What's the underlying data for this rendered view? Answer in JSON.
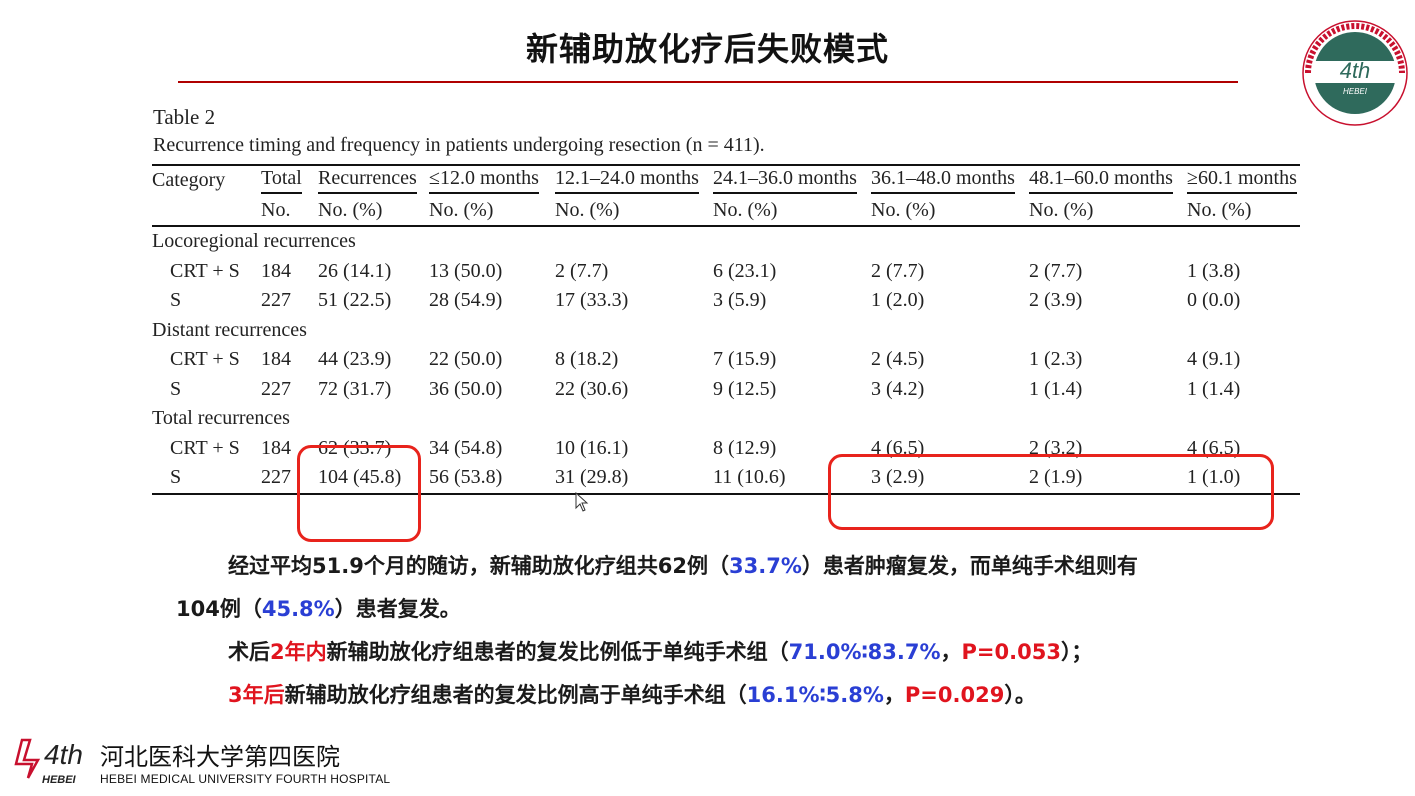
{
  "slide": {
    "title": "新辅助放化疗后失败模式"
  },
  "table": {
    "label": "Table 2",
    "caption": "Recurrence timing and frequency in patients undergoing resection (n = 411).",
    "header_row1": [
      "Category",
      "Total",
      "Recurrences",
      "≤12.0 months",
      "12.1–24.0 months",
      "24.1–36.0 months",
      "36.1–48.0 months",
      "48.1–60.0 months",
      "≥60.1 months"
    ],
    "header_row2": [
      "",
      "No.",
      "No. (%)",
      "No. (%)",
      "No. (%)",
      "No. (%)",
      "No. (%)",
      "No. (%)",
      "No. (%)"
    ],
    "groups": [
      {
        "name": "Locoregional recurrences",
        "rows": [
          [
            "CRT + S",
            "184",
            "26 (14.1)",
            "13 (50.0)",
            "2 (7.7)",
            "6 (23.1)",
            "2 (7.7)",
            "2 (7.7)",
            "1 (3.8)"
          ],
          [
            "S",
            "227",
            "51 (22.5)",
            "28 (54.9)",
            "17 (33.3)",
            "3 (5.9)",
            "1 (2.0)",
            "2 (3.9)",
            "0 (0.0)"
          ]
        ]
      },
      {
        "name": "Distant recurrences",
        "rows": [
          [
            "CRT + S",
            "184",
            "44 (23.9)",
            "22 (50.0)",
            "8 (18.2)",
            "7 (15.9)",
            "2 (4.5)",
            "1 (2.3)",
            "4 (9.1)"
          ],
          [
            "S",
            "227",
            "72 (31.7)",
            "36 (50.0)",
            "22 (30.6)",
            "9 (12.5)",
            "3 (4.2)",
            "1 (1.4)",
            "1 (1.4)"
          ]
        ]
      },
      {
        "name": "Total recurrences",
        "rows": [
          [
            "CRT + S",
            "184",
            "62 (33.7)",
            "34 (54.8)",
            "10 (16.1)",
            "8 (12.9)",
            "4 (6.5)",
            "2 (3.2)",
            "4 (6.5)"
          ],
          [
            "S",
            "227",
            "104 (45.8)",
            "56 (53.8)",
            "31 (29.8)",
            "11 (10.6)",
            "3 (2.9)",
            "2 (1.9)",
            "1 (1.0)"
          ]
        ]
      }
    ]
  },
  "text": {
    "p1": {
      "a": "经过平均51.9个月的随访，新辅助放化疗组共62例（",
      "b": "33.7%",
      "c": "）患者肿瘤复发，而单纯手术组则有"
    },
    "p2": {
      "a": "104例（",
      "b": "45.8%",
      "c": "）患者复发。"
    },
    "p3": {
      "a": "术后",
      "b": "2年内",
      "c": "新辅助放化疗组患者的复发比例低于单纯手术组（",
      "d": "71.0%∶83.7%",
      "e": "，",
      "f": "P=0.053",
      "g": "）；"
    },
    "p4": {
      "a": "3年后",
      "b": "新辅助放化疗组患者的复发比例高于单纯手术组（",
      "c": "16.1%∶5.8%",
      "d": "，",
      "e": "P=0.029",
      "f": "）。"
    }
  },
  "footer": {
    "cn_name": "河北医科大学第四医院",
    "en_name": "HEBEI MEDICAL UNIVERSITY FOURTH HOSPITAL",
    "logo_text": "4th",
    "logo_sub": "HEBEI"
  },
  "colors": {
    "accent_red": "#e0141e",
    "accent_blue": "#2a3fd4",
    "title_rule": "#b00000",
    "highlight_box": "#e8231c"
  }
}
